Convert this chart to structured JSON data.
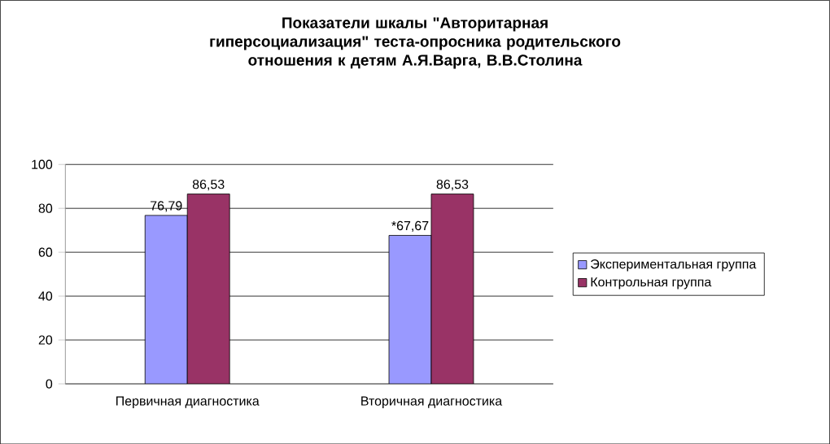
{
  "chart_data": {
    "type": "bar",
    "title": "Показатели шкалы \"Авторитарная гиперсоциализация\" теста-опросника родительского отношения к детям А.Я.Варга, В.В.Столина",
    "categories": [
      "Первичная диагностика",
      "Вторичная диагностика"
    ],
    "series": [
      {
        "name": "Экспериментальная группа",
        "color": "#9999ff",
        "values": [
          76.79,
          67.67
        ],
        "value_labels": [
          "76,79",
          "*67,67"
        ]
      },
      {
        "name": "Контрольная группа",
        "color": "#993366",
        "values": [
          86.53,
          86.53
        ],
        "value_labels": [
          "86,53",
          "86,53"
        ]
      }
    ],
    "ylim": [
      0,
      100
    ],
    "yticks": [
      0,
      20,
      40,
      60,
      80,
      100
    ],
    "grid": "y",
    "legend": "right"
  }
}
